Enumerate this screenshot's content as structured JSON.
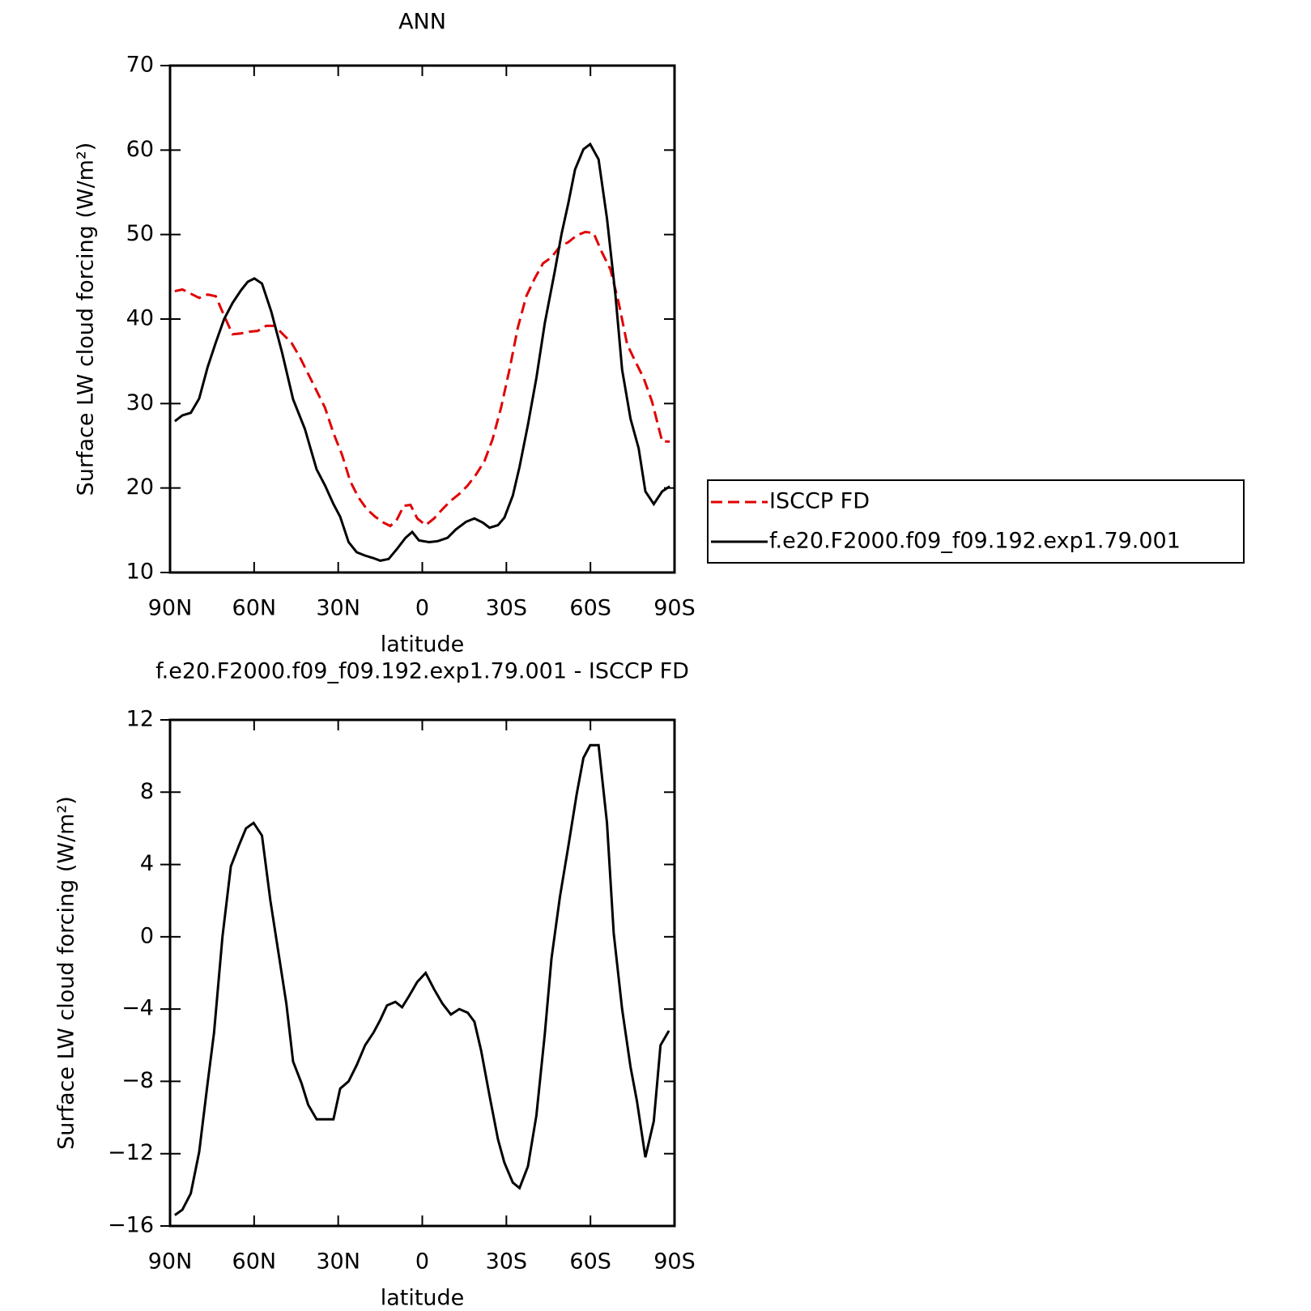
{
  "chart_data": [
    {
      "type": "line",
      "title": "ANN",
      "xlabel": "latitude",
      "ylabel": "Surface LW cloud forcing (W/m²)",
      "xlim": [
        90,
        -90
      ],
      "xticks": [
        {
          "value": 90,
          "label": "90N"
        },
        {
          "value": 60,
          "label": "60N"
        },
        {
          "value": 30,
          "label": "30N"
        },
        0,
        {
          "value": -30,
          "label": "30S"
        },
        {
          "value": -60,
          "label": "60S"
        },
        {
          "value": -90,
          "label": "90S"
        }
      ],
      "ylim": [
        10,
        70
      ],
      "yticks": [
        10,
        20,
        30,
        40,
        50,
        60,
        70
      ],
      "legend": "right",
      "series": [
        {
          "name": "ISCCP FD",
          "color": "#e00000",
          "dash": true,
          "x": [
            88.3,
            85.6,
            82.6,
            79.6,
            76.6,
            73.7,
            70.7,
            67.7,
            64.7,
            61.7,
            58.7,
            55.7,
            52.7,
            49.7,
            46.7,
            43.7,
            40.7,
            37.7,
            34.7,
            31.7,
            28.7,
            25.7,
            22.8,
            19.8,
            16.8,
            13.8,
            11.4,
            9,
            6.6,
            4.2,
            1.8,
            -1.2,
            -4.2,
            -7.2,
            -10.2,
            -13.2,
            -16.2,
            -19.2,
            -22.2,
            -25.1,
            -28.1,
            -31.1,
            -34.1,
            -37.1,
            -40.1,
            -43.1,
            -46.1,
            -49.1,
            -52.1,
            -55.1,
            -58.1,
            -61.1,
            -64.1,
            -67.1,
            -70.1,
            -73.1,
            -76,
            -79,
            -82,
            -85.6,
            -88.3
          ],
          "values": [
            43.3,
            43.5,
            43,
            42.5,
            42.9,
            42.7,
            40.4,
            38.2,
            38.3,
            38.5,
            38.6,
            39.2,
            39.2,
            38.2,
            37.2,
            35.5,
            33.5,
            31.5,
            29.5,
            26.5,
            24,
            20.8,
            18.9,
            17.5,
            16.6,
            15.9,
            15.5,
            16.3,
            17.9,
            18,
            16.4,
            15.6,
            16.4,
            17.5,
            18.5,
            19.3,
            20.3,
            21.6,
            23.2,
            25.8,
            29.5,
            34,
            39,
            42.7,
            44.8,
            46.6,
            47.3,
            48.6,
            49.1,
            49.9,
            50.3,
            50.2,
            47.9,
            45.9,
            41.9,
            37,
            35,
            33,
            30.2,
            25.5,
            25.5
          ]
        },
        {
          "name": "f.e20.F2000.f09_f09.192.exp1.79.001",
          "color": "#000000",
          "dash": false,
          "x": [
            88.3,
            85.6,
            82.6,
            79.6,
            76.6,
            73.7,
            70.7,
            67.7,
            64.7,
            62.3,
            59.9,
            57.2,
            53.9,
            50,
            46.1,
            41.9,
            37.7,
            34.7,
            31.7,
            29.3,
            26.3,
            23.4,
            20.4,
            17.4,
            15,
            12,
            9,
            6,
            3.6,
            1.2,
            -2.4,
            -5.4,
            -9,
            -12,
            -15.6,
            -18.6,
            -21.6,
            -24,
            -27,
            -29.3,
            -32.3,
            -34.7,
            -37.7,
            -40.7,
            -43.7,
            -47.3,
            -49.7,
            -52.1,
            -54.5,
            -57.5,
            -59.9,
            -62.9,
            -65.9,
            -68.9,
            -71.3,
            -74.3,
            -77.2,
            -79.6,
            -82.6,
            -85.6,
            -88.3
          ],
          "values": [
            27.9,
            28.6,
            28.9,
            30.6,
            34.3,
            37.2,
            40,
            41.9,
            43.4,
            44.4,
            44.8,
            44.2,
            40.9,
            36,
            30.5,
            27,
            22.2,
            20.3,
            18.1,
            16.6,
            13.6,
            12.4,
            12,
            11.7,
            11.4,
            11.6,
            12.8,
            14.1,
            14.8,
            13.8,
            13.6,
            13.7,
            14.1,
            15.1,
            16,
            16.4,
            15.9,
            15.3,
            15.6,
            16.5,
            19.1,
            22.5,
            27.5,
            33,
            39.5,
            45.7,
            50.1,
            53.7,
            57.7,
            60.1,
            60.7,
            58.9,
            51.9,
            42.9,
            34,
            28.2,
            24.7,
            19.6,
            18.1,
            19.6,
            20.2
          ]
        }
      ]
    },
    {
      "type": "line",
      "title": "f.e20.F2000.f09_f09.192.exp1.79.001 - ISCCP FD",
      "xlabel": "latitude",
      "ylabel": "Surface LW cloud forcing (W/m²)",
      "xlim": [
        90,
        -90
      ],
      "xticks": [
        {
          "value": 90,
          "label": "90N"
        },
        {
          "value": 60,
          "label": "60N"
        },
        {
          "value": 30,
          "label": "30N"
        },
        0,
        {
          "value": -30,
          "label": "30S"
        },
        {
          "value": -60,
          "label": "60S"
        },
        {
          "value": -90,
          "label": "90S"
        }
      ],
      "ylim": [
        -16,
        12
      ],
      "yticks": [
        {
          "value": -16,
          "label": "−16"
        },
        {
          "value": -12,
          "label": "−12"
        },
        {
          "value": -8,
          "label": "−8"
        },
        {
          "value": -4,
          "label": "−4"
        },
        0,
        4,
        8,
        12
      ],
      "series": [
        {
          "color": "#000000",
          "x": [
            88.3,
            85.6,
            82.6,
            79.6,
            76.6,
            74.3,
            71.3,
            68.3,
            65.3,
            62.9,
            60.2,
            57.2,
            54.2,
            51.5,
            48.5,
            46.1,
            43.1,
            40.7,
            37.7,
            34.7,
            31.7,
            29.3,
            26.3,
            23.4,
            20.4,
            17.4,
            15,
            12.6,
            9.6,
            7.2,
            4.8,
            1.8,
            -1.2,
            -4.2,
            -7.2,
            -10.2,
            -13.2,
            -16.2,
            -18.6,
            -21,
            -24,
            -27,
            -29.3,
            -32.3,
            -34.7,
            -37.7,
            -40.7,
            -43.7,
            -46.1,
            -49.1,
            -52.1,
            -55.1,
            -57.5,
            -59.9,
            -62.9,
            -65.9,
            -68.3,
            -71.3,
            -74.3,
            -76.6,
            -79.6,
            -82.6,
            -85,
            -88
          ],
          "values": [
            -15.4,
            -15.1,
            -14.2,
            -11.9,
            -8.1,
            -5.3,
            0,
            3.9,
            5.1,
            6,
            6.3,
            5.6,
            2,
            -0.7,
            -3.7,
            -6.9,
            -8.1,
            -9.3,
            -10.1,
            -10.1,
            -10.1,
            -8.4,
            -8,
            -7.1,
            -6,
            -5.3,
            -4.6,
            -3.8,
            -3.6,
            -3.9,
            -3.3,
            -2.5,
            -2,
            -2.9,
            -3.7,
            -4.3,
            -4,
            -4.2,
            -4.7,
            -6.3,
            -8.8,
            -11.2,
            -12.5,
            -13.6,
            -13.9,
            -12.7,
            -9.9,
            -5.4,
            -1.2,
            2.2,
            5,
            7.9,
            9.9,
            10.6,
            10.6,
            6.3,
            0.2,
            -4,
            -7.2,
            -9.1,
            -12.2,
            -10.2,
            -6,
            -5.2
          ]
        }
      ]
    }
  ]
}
